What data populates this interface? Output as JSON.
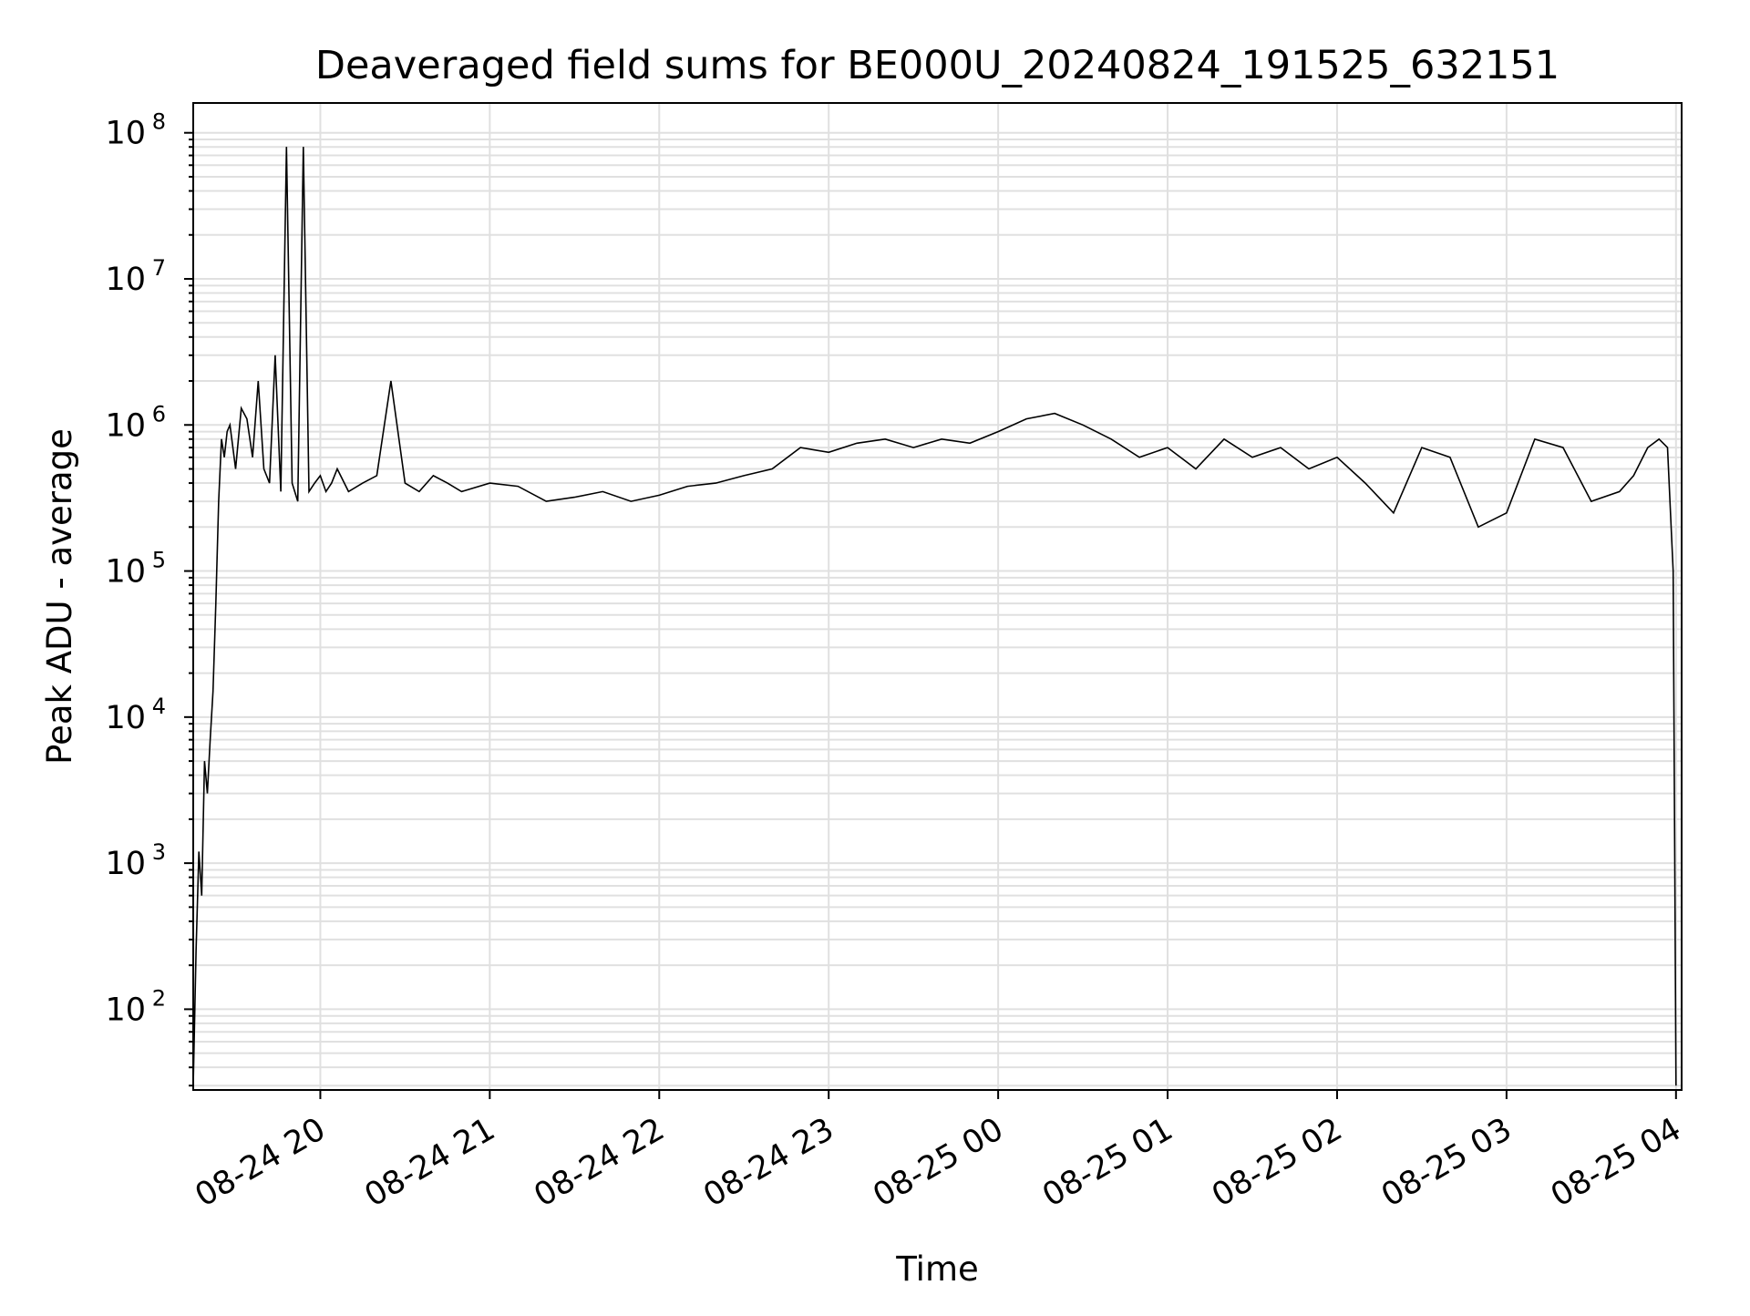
{
  "chart_data": {
    "type": "line",
    "title": "Deaveraged field sums for BE000U_20240824_191525_632151",
    "xlabel": "Time",
    "ylabel": "Peak ADU - average",
    "yscale": "log",
    "ylim": [
      28,
      160000000
    ],
    "xlim": [
      "2024-08-24 19:15",
      "2024-08-25 04:02"
    ],
    "grid": true,
    "grid_minor": true,
    "line_color": "#000000",
    "grid_color": "#e0e0e0",
    "x_tick_labels": [
      "08-24 20",
      "08-24 21",
      "08-24 22",
      "08-24 23",
      "08-25 00",
      "08-25 01",
      "08-25 02",
      "08-25 03",
      "08-25 04"
    ],
    "x_ticks": [
      "2024-08-24 20:00",
      "2024-08-24 21:00",
      "2024-08-24 22:00",
      "2024-08-24 23:00",
      "2024-08-25 00:00",
      "2024-08-25 01:00",
      "2024-08-25 02:00",
      "2024-08-25 03:00",
      "2024-08-25 04:00"
    ],
    "y_tick_labels": [
      {
        "base": "10",
        "exp": "2"
      },
      {
        "base": "10",
        "exp": "3"
      },
      {
        "base": "10",
        "exp": "4"
      },
      {
        "base": "10",
        "exp": "5"
      },
      {
        "base": "10",
        "exp": "6"
      },
      {
        "base": "10",
        "exp": "7"
      },
      {
        "base": "10",
        "exp": "8"
      }
    ],
    "series": [
      {
        "x": [
          "2024-08-24 19:15",
          "2024-08-24 19:16",
          "2024-08-24 19:17",
          "2024-08-24 19:18",
          "2024-08-24 19:19",
          "2024-08-24 19:20",
          "2024-08-24 19:21",
          "2024-08-24 19:22",
          "2024-08-24 19:23",
          "2024-08-24 19:24",
          "2024-08-24 19:25",
          "2024-08-24 19:26",
          "2024-08-24 19:27",
          "2024-08-24 19:28",
          "2024-08-24 19:30",
          "2024-08-24 19:32",
          "2024-08-24 19:34",
          "2024-08-24 19:36",
          "2024-08-24 19:38",
          "2024-08-24 19:40",
          "2024-08-24 19:42",
          "2024-08-24 19:44",
          "2024-08-24 19:46",
          "2024-08-24 19:48",
          "2024-08-24 19:50",
          "2024-08-24 19:52",
          "2024-08-24 19:54",
          "2024-08-24 19:56",
          "2024-08-24 19:58",
          "2024-08-24 20:00",
          "2024-08-24 20:02",
          "2024-08-24 20:04",
          "2024-08-24 20:06",
          "2024-08-24 20:10",
          "2024-08-24 20:15",
          "2024-08-24 20:20",
          "2024-08-24 20:25",
          "2024-08-24 20:30",
          "2024-08-24 20:35",
          "2024-08-24 20:40",
          "2024-08-24 20:45",
          "2024-08-24 20:50",
          "2024-08-24 21:00",
          "2024-08-24 21:10",
          "2024-08-24 21:20",
          "2024-08-24 21:30",
          "2024-08-24 21:40",
          "2024-08-24 21:50",
          "2024-08-24 22:00",
          "2024-08-24 22:10",
          "2024-08-24 22:20",
          "2024-08-24 22:30",
          "2024-08-24 22:40",
          "2024-08-24 22:50",
          "2024-08-24 23:00",
          "2024-08-24 23:10",
          "2024-08-24 23:20",
          "2024-08-24 23:30",
          "2024-08-24 23:40",
          "2024-08-24 23:50",
          "2024-08-25 00:00",
          "2024-08-25 00:10",
          "2024-08-25 00:20",
          "2024-08-25 00:30",
          "2024-08-25 00:40",
          "2024-08-25 00:50",
          "2024-08-25 01:00",
          "2024-08-25 01:10",
          "2024-08-25 01:20",
          "2024-08-25 01:30",
          "2024-08-25 01:40",
          "2024-08-25 01:50",
          "2024-08-25 02:00",
          "2024-08-25 02:10",
          "2024-08-25 02:20",
          "2024-08-25 02:30",
          "2024-08-25 02:40",
          "2024-08-25 02:50",
          "2024-08-25 03:00",
          "2024-08-25 03:10",
          "2024-08-25 03:20",
          "2024-08-25 03:30",
          "2024-08-25 03:40",
          "2024-08-25 03:45",
          "2024-08-25 03:50",
          "2024-08-25 03:54",
          "2024-08-25 03:57",
          "2024-08-25 03:59",
          "2024-08-25 04:00"
        ],
        "y": [
          30,
          250,
          1200,
          600,
          5000,
          3000,
          7000,
          15000,
          60000,
          300000,
          800000,
          600000,
          900000,
          1000000,
          500000,
          1300000,
          1100000,
          600000,
          2000000,
          500000,
          400000,
          3000000,
          350000,
          80000000,
          400000,
          300000,
          80000000,
          350000,
          400000,
          450000,
          350000,
          400000,
          500000,
          350000,
          400000,
          450000,
          2000000,
          400000,
          350000,
          450000,
          400000,
          350000,
          400000,
          380000,
          300000,
          320000,
          350000,
          300000,
          330000,
          380000,
          400000,
          450000,
          500000,
          700000,
          650000,
          750000,
          800000,
          700000,
          800000,
          750000,
          900000,
          1100000,
          1200000,
          1000000,
          800000,
          600000,
          700000,
          500000,
          800000,
          600000,
          700000,
          500000,
          600000,
          400000,
          250000,
          700000,
          600000,
          200000,
          250000,
          800000,
          700000,
          300000,
          350000,
          450000,
          700000,
          800000,
          700000,
          100000,
          30
        ]
      }
    ]
  }
}
